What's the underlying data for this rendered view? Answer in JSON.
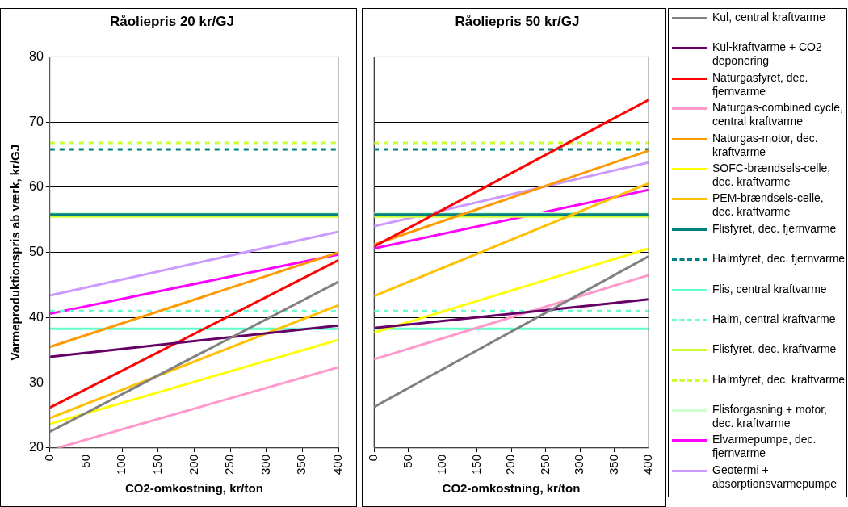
{
  "chart_data": [
    {
      "type": "line",
      "title": "Råoliepris 20 kr/GJ",
      "xlabel": "CO2-omkostning, kr/ton",
      "ylabel": "Varmeproduktionspris ab værk, kr/GJ",
      "xlim": [
        0,
        400
      ],
      "xticks": [
        0,
        50,
        100,
        150,
        200,
        250,
        300,
        350,
        400
      ],
      "ylim": [
        20,
        80
      ],
      "yticks": [
        20,
        30,
        40,
        50,
        60,
        70,
        80
      ],
      "grid": "y",
      "series": [
        {
          "color": "#808080",
          "x": [
            0,
            400
          ],
          "values": [
            22.5,
            45.5
          ]
        },
        {
          "color": "#660066",
          "x": [
            0,
            400
          ],
          "values": [
            34.0,
            38.8
          ]
        },
        {
          "color": "#ff0000",
          "x": [
            0,
            400
          ],
          "values": [
            26.2,
            48.8
          ]
        },
        {
          "color": "#ff99cc",
          "x": [
            10,
            400
          ],
          "values": [
            20,
            32.4
          ]
        },
        {
          "color": "#ff9900",
          "x": [
            0,
            400
          ],
          "values": [
            35.5,
            50.0
          ]
        },
        {
          "color": "#ffff00",
          "x": [
            0,
            400
          ],
          "values": [
            23.7,
            36.6
          ]
        },
        {
          "color": "#ffc000",
          "x": [
            0,
            400
          ],
          "values": [
            24.6,
            41.9
          ]
        },
        {
          "color": "#008080",
          "x": [
            0,
            400
          ],
          "values": [
            55.8,
            55.8
          ]
        },
        {
          "color": "#008080",
          "line_style": "dashed",
          "x": [
            0,
            400
          ],
          "values": [
            65.8,
            65.8
          ]
        },
        {
          "color": "#66ffcc",
          "x": [
            0,
            400
          ],
          "values": [
            38.3,
            38.3
          ]
        },
        {
          "color": "#66ffcc",
          "line_style": "dashed",
          "x": [
            0,
            400
          ],
          "values": [
            41.0,
            41.0
          ]
        },
        {
          "color": "#ccff33",
          "x": [
            0,
            400
          ],
          "values": [
            55.5,
            55.5
          ]
        },
        {
          "color": "#ccff33",
          "line_style": "dashed",
          "x": [
            0,
            400
          ],
          "values": [
            66.8,
            66.8
          ]
        },
        {
          "color": "#ccffcc",
          "x": [
            0,
            400
          ],
          "values": [
            56.1,
            56.1
          ]
        },
        {
          "color": "#ff00ff",
          "x": [
            0,
            400
          ],
          "values": [
            40.6,
            49.7
          ]
        },
        {
          "color": "#cc99ff",
          "x": [
            0,
            400
          ],
          "values": [
            43.4,
            53.2
          ]
        }
      ]
    },
    {
      "type": "line",
      "title": "Råoliepris 50 kr/GJ",
      "xlabel": "CO2-omkostning, kr/ton",
      "xlim": [
        0,
        400
      ],
      "xticks": [
        0,
        50,
        100,
        150,
        200,
        250,
        300,
        350,
        400
      ],
      "ylim": [
        20,
        80
      ],
      "yticks": [
        20,
        30,
        40,
        50,
        60,
        70,
        80
      ],
      "grid": "y",
      "tick_labels": "x",
      "legend": "right",
      "series": [
        {
          "name": "Kul, central kraftvarme",
          "color": "#808080",
          "x": [
            0,
            400
          ],
          "values": [
            26.3,
            49.4
          ]
        },
        {
          "name": "Kul-kraftvarme + CO2 deponering",
          "color": "#660066",
          "x": [
            0,
            400
          ],
          "values": [
            38.4,
            42.8
          ]
        },
        {
          "name": "Naturgasfyret, dec. fjernvarme",
          "color": "#ff0000",
          "x": [
            0,
            400
          ],
          "values": [
            50.9,
            73.4
          ]
        },
        {
          "name": "Naturgas-combined cycle, central kraftvarme",
          "color": "#ff99cc",
          "x": [
            0,
            400
          ],
          "values": [
            33.6,
            46.5
          ]
        },
        {
          "name": "Naturgas-motor, dec. kraftvarme",
          "color": "#ff9900",
          "x": [
            0,
            400
          ],
          "values": [
            51.2,
            65.6
          ]
        },
        {
          "name": "SOFC-brændsels-celle, dec. kraftvarme",
          "color": "#ffff00",
          "x": [
            0,
            400
          ],
          "values": [
            37.7,
            50.6
          ]
        },
        {
          "name": "PEM-brændsels-celle, dec. kraftvarme",
          "color": "#ffc000",
          "x": [
            0,
            400
          ],
          "values": [
            43.3,
            60.6
          ]
        },
        {
          "name": "Flisfyret, dec. fjernvarme",
          "color": "#008080",
          "x": [
            0,
            400
          ],
          "values": [
            55.8,
            55.8
          ]
        },
        {
          "name": "Halmfyret, dec. fjernvarme",
          "color": "#008080",
          "line_style": "dashed",
          "x": [
            0,
            400
          ],
          "values": [
            65.8,
            65.8
          ]
        },
        {
          "name": "Flis, central kraftvarme",
          "color": "#66ffcc",
          "x": [
            0,
            400
          ],
          "values": [
            38.3,
            38.3
          ]
        },
        {
          "name": "Halm, central kraftvarme",
          "color": "#66ffcc",
          "line_style": "dashed",
          "x": [
            0,
            400
          ],
          "values": [
            41.0,
            41.0
          ]
        },
        {
          "name": "Flisfyret, dec. kraftvarme",
          "color": "#ccff33",
          "x": [
            0,
            400
          ],
          "values": [
            55.5,
            55.5
          ]
        },
        {
          "name": "Halmfyret, dec. kraftvarme",
          "color": "#ccff33",
          "line_style": "dashed",
          "x": [
            0,
            400
          ],
          "values": [
            66.8,
            66.8
          ]
        },
        {
          "name": "Flisforgasning + motor, dec. kraftvarme",
          "color": "#ccffcc",
          "x": [
            0,
            400
          ],
          "values": [
            56.1,
            56.1
          ]
        },
        {
          "name": "Elvarmepumpe, dec. fjernvarme",
          "color": "#ff00ff",
          "x": [
            0,
            400
          ],
          "values": [
            50.6,
            59.6
          ]
        },
        {
          "name": "Geotermi + absorptionsvarmepumpe",
          "color": "#cc99ff",
          "x": [
            0,
            400
          ],
          "values": [
            54.0,
            63.8
          ]
        }
      ]
    }
  ]
}
